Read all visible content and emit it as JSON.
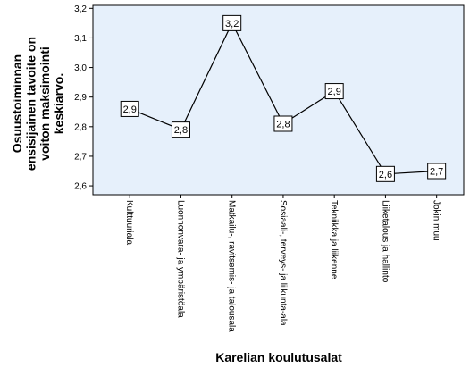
{
  "chart_data": {
    "type": "line",
    "title": "",
    "xlabel": "Karelian koulutusalat",
    "ylabel_lines": [
      "Osuustoiminnan",
      "ensisijainen tavoite on",
      "voiton maksimointi",
      "keskiarvo."
    ],
    "categories": [
      "Kulttuuriala",
      "Luonnonvara- ja ympäristöala",
      "Matkailu-, ravitsemis- ja talousala",
      "Sosiaali-, terveys- ja liikunta-ala",
      "Tekniikka ja liikenne",
      "Liiketalous ja hallinto",
      "Jokin muu"
    ],
    "values": [
      2.86,
      2.79,
      3.15,
      2.81,
      2.92,
      2.64,
      2.65
    ],
    "data_labels": [
      "2,9",
      "2,8",
      "3,2",
      "2,8",
      "2,9",
      "2,6",
      "2,7"
    ],
    "ylim": [
      2.57,
      3.21
    ],
    "yticks": [
      2.6,
      2.7,
      2.8,
      2.9,
      3.0,
      3.1,
      3.2
    ],
    "ytick_labels": [
      "2,6",
      "2,7",
      "2,8",
      "2,9",
      "3,0",
      "3,1",
      "3,2"
    ],
    "grid": false,
    "colors": {
      "plot_background": "#e6f0fb",
      "line": "#000000",
      "frame": "#000000"
    }
  }
}
